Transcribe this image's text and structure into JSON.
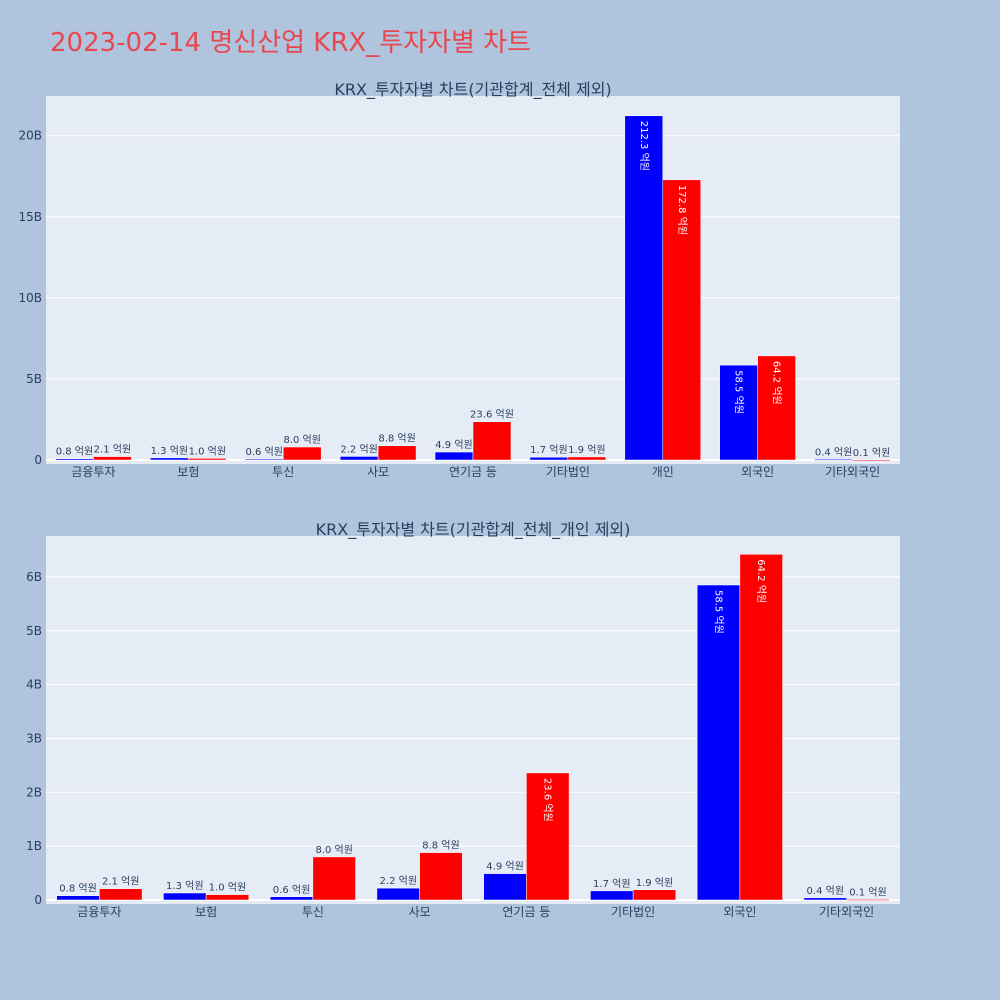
{
  "title": "2023-02-14 명신산업 KRX_투자자별 차트",
  "colors": {
    "series_a": "#0000ff",
    "series_b": "#ff0000",
    "background": "#b0c4de",
    "plot_bg": "#e5ecf6"
  },
  "chart_data": [
    {
      "type": "bar",
      "title": "KRX_투자자별 차트(기관합계_전체 제외)",
      "categories": [
        "금융투자",
        "보험",
        "투신",
        "사모",
        "연기금 등",
        "기타법인",
        "개인",
        "외국인",
        "기타외국인"
      ],
      "series": [
        {
          "color": "#0000ff",
          "values": [
            80000000,
            130000000,
            60000000,
            220000000,
            490000000,
            170000000,
            21230000000,
            5850000000,
            40000000
          ],
          "labels": [
            "0.8 억원",
            "1.3 억원",
            "0.6 억원",
            "2.2 억원",
            "4.9 억원",
            "1.7 억원",
            "212.3 억원",
            "58.5 억원",
            "0.4 억원"
          ]
        },
        {
          "color": "#ff0000",
          "values": [
            210000000,
            100000000,
            800000000,
            880000000,
            2360000000,
            190000000,
            17280000000,
            6420000000,
            10000000
          ],
          "labels": [
            "2.1 억원",
            "1.0 억원",
            "8.0 억원",
            "8.8 억원",
            "23.6 억원",
            "1.9 억원",
            "172.8 억원",
            "64.2 억원",
            "0.1 억원"
          ]
        }
      ],
      "yticks": [
        0,
        5000000000,
        10000000000,
        15000000000,
        20000000000
      ],
      "ytick_labels": [
        "0",
        "5B",
        "10B",
        "15B",
        "20B"
      ],
      "ylim": [
        0,
        22450000000
      ],
      "grid": true,
      "barmode": "group"
    },
    {
      "type": "bar",
      "title": "KRX_투자자별 차트(기관합계_전체_개인 제외)",
      "categories": [
        "금융투자",
        "보험",
        "투신",
        "사모",
        "연기금 등",
        "기타법인",
        "외국인",
        "기타외국인"
      ],
      "series": [
        {
          "color": "#0000ff",
          "values": [
            80000000,
            130000000,
            60000000,
            220000000,
            490000000,
            170000000,
            5850000000,
            40000000
          ],
          "labels": [
            "0.8 억원",
            "1.3 억원",
            "0.6 억원",
            "2.2 억원",
            "4.9 억원",
            "1.7 억원",
            "58.5 억원",
            "0.4 억원"
          ]
        },
        {
          "color": "#ff0000",
          "values": [
            210000000,
            100000000,
            800000000,
            880000000,
            2360000000,
            190000000,
            6420000000,
            10000000
          ],
          "labels": [
            "2.1 억원",
            "1.0 억원",
            "8.0 억원",
            "8.8 억원",
            "23.6 억원",
            "1.9 억원",
            "64.2 억원",
            "0.1 억원"
          ]
        }
      ],
      "yticks": [
        0,
        1000000000,
        2000000000,
        3000000000,
        4000000000,
        5000000000,
        6000000000
      ],
      "ytick_labels": [
        "0",
        "1B",
        "2B",
        "3B",
        "4B",
        "5B",
        "6B"
      ],
      "ylim": [
        0,
        6760000000
      ],
      "grid": true,
      "barmode": "group"
    }
  ]
}
